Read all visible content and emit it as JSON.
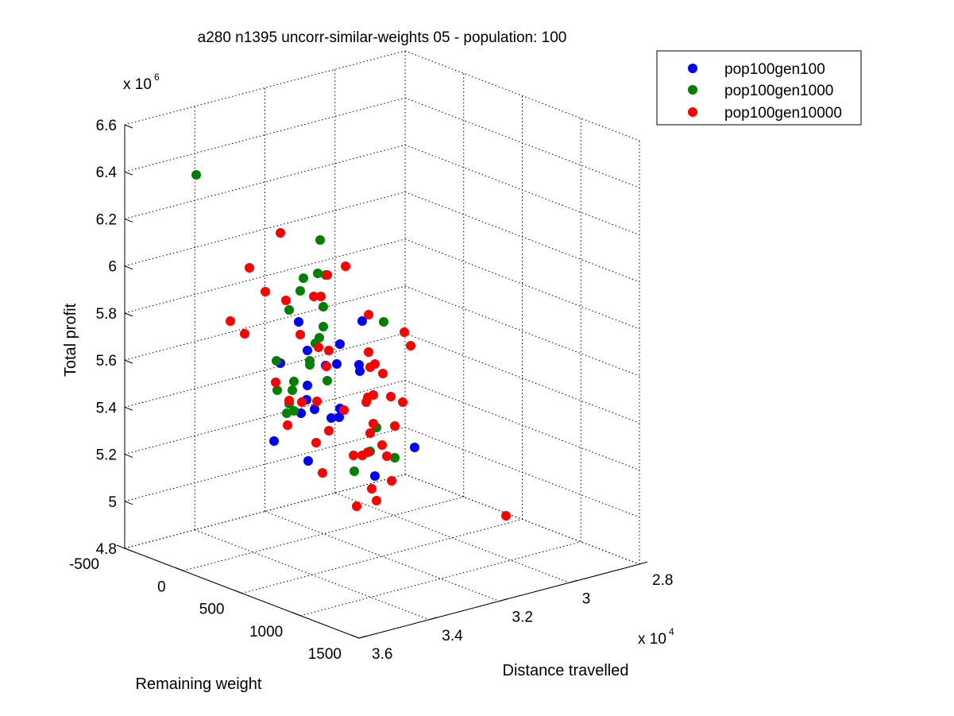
{
  "chart_data": {
    "type": "scatter",
    "title": "a280 n1395 uncorr-similar-weights 05 - population: 100",
    "xlabel": "Remaining weight",
    "ylabel": "Distance travelled",
    "zlabel": "Total profit",
    "y_multiplier": "x 10",
    "y_exponent": "4",
    "z_multiplier": "x 10",
    "z_exponent": "6",
    "x_ticks": [
      "-500",
      "0",
      "500",
      "1000",
      "1500"
    ],
    "y_ticks": [
      "2.8",
      "3",
      "3.2",
      "3.4",
      "3.6"
    ],
    "z_ticks": [
      "4.8",
      "5",
      "5.2",
      "5.4",
      "5.6",
      "5.8",
      "6",
      "6.2",
      "6.4",
      "6.6"
    ],
    "legend": {
      "position": "top-right"
    },
    "series": [
      {
        "name": "pop100gen100",
        "color": "#0000ff",
        "points": [
          [
            376,
            405
          ],
          [
            387,
            441
          ],
          [
            353,
            457
          ],
          [
            410,
            460
          ],
          [
            424,
            458
          ],
          [
            428,
            433
          ],
          [
            456,
            404
          ],
          [
            452,
            459
          ],
          [
            453,
            467
          ],
          [
            387,
            485
          ],
          [
            386,
            503
          ],
          [
            379,
            520
          ],
          [
            396,
            515
          ],
          [
            417,
            526
          ],
          [
            427,
            525
          ],
          [
            428,
            514
          ],
          [
            345,
            555
          ],
          [
            388,
            580
          ],
          [
            472,
            599
          ],
          [
            522,
            563
          ]
        ]
      },
      {
        "name": "pop100gen1000",
        "color": "#008000",
        "points": [
          [
            247,
            220
          ],
          [
            403,
            302
          ],
          [
            382,
            350
          ],
          [
            400,
            344
          ],
          [
            410,
            346
          ],
          [
            378,
            366
          ],
          [
            364,
            390
          ],
          [
            407,
            386
          ],
          [
            407,
            411
          ],
          [
            402,
            425
          ],
          [
            397,
            432
          ],
          [
            390,
            454
          ],
          [
            390,
            459
          ],
          [
            348,
            454
          ],
          [
            370,
            480
          ],
          [
            368,
            491
          ],
          [
            412,
            479
          ],
          [
            349,
            491
          ],
          [
            364,
            508
          ],
          [
            361,
            520
          ],
          [
            370,
            517
          ],
          [
            474,
            538
          ],
          [
            466,
            568
          ],
          [
            497,
            576
          ],
          [
            446,
            593
          ],
          [
            483,
            405
          ]
        ]
      },
      {
        "name": "pop100gen10000",
        "color": "#ff0000",
        "points": [
          [
            353,
            293
          ],
          [
            314,
            337
          ],
          [
            435,
            335
          ],
          [
            334,
            367
          ],
          [
            412,
            346
          ],
          [
            395,
            373
          ],
          [
            404,
            373
          ],
          [
            360,
            378
          ],
          [
            464,
            396
          ],
          [
            290,
            404
          ],
          [
            308,
            420
          ],
          [
            378,
            421
          ],
          [
            401,
            437
          ],
          [
            414,
            441
          ],
          [
            509,
            418
          ],
          [
            517,
            435
          ],
          [
            464,
            443
          ],
          [
            466,
            462
          ],
          [
            472,
            458
          ],
          [
            482,
            470
          ],
          [
            411,
            461
          ],
          [
            463,
            500
          ],
          [
            470,
            497
          ],
          [
            492,
            499
          ],
          [
            507,
            506
          ],
          [
            461,
            506
          ],
          [
            347,
            481
          ],
          [
            380,
            506
          ],
          [
            364,
            504
          ],
          [
            399,
            505
          ],
          [
            433,
            516
          ],
          [
            470,
            533
          ],
          [
            466,
            545
          ],
          [
            497,
            536
          ],
          [
            362,
            535
          ],
          [
            414,
            542
          ],
          [
            398,
            557
          ],
          [
            481,
            560
          ],
          [
            445,
            573
          ],
          [
            456,
            573
          ],
          [
            463,
            569
          ],
          [
            487,
            574
          ],
          [
            406,
            595
          ],
          [
            493,
            605
          ],
          [
            468,
            615
          ],
          [
            474,
            630
          ],
          [
            449,
            637
          ],
          [
            637,
            649
          ]
        ]
      }
    ]
  }
}
